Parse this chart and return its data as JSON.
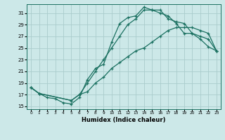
{
  "xlabel": "Humidex (Indice chaleur)",
  "background_color": "#cce8e8",
  "grid_color": "#aacccc",
  "line_color": "#1a7060",
  "xlim": [
    -0.5,
    23.5
  ],
  "ylim": [
    14.5,
    32.5
  ],
  "xticks": [
    0,
    1,
    2,
    3,
    4,
    5,
    6,
    7,
    8,
    9,
    10,
    11,
    12,
    13,
    14,
    15,
    16,
    17,
    18,
    19,
    20,
    21,
    22,
    23
  ],
  "yticks": [
    15,
    17,
    19,
    21,
    23,
    25,
    27,
    29,
    31
  ],
  "series": [
    {
      "x": [
        0,
        1,
        2,
        3,
        4,
        5,
        6,
        7,
        8,
        9,
        10,
        11,
        12,
        13,
        14,
        15,
        16,
        17,
        18,
        19,
        20,
        21,
        22,
        23
      ],
      "y": [
        18.2,
        17.2,
        16.5,
        16.3,
        15.6,
        15.4,
        16.5,
        19.6,
        21.5,
        22.2,
        26.0,
        29.2,
        30.2,
        30.5,
        32.0,
        31.5,
        31.5,
        30.0,
        29.5,
        29.2,
        27.5,
        26.5,
        25.2,
        24.5
      ]
    },
    {
      "x": [
        0,
        1,
        5,
        6,
        7,
        8,
        9,
        10,
        11,
        12,
        13,
        14,
        15,
        16,
        17,
        18,
        19,
        20,
        21,
        22,
        23
      ],
      "y": [
        18.2,
        17.2,
        16.0,
        17.0,
        19.0,
        21.0,
        23.0,
        25.0,
        27.0,
        29.0,
        30.0,
        31.5,
        31.5,
        31.0,
        30.5,
        29.2,
        27.5,
        27.5,
        27.0,
        26.5,
        24.5
      ]
    },
    {
      "x": [
        0,
        1,
        5,
        6,
        7,
        8,
        9,
        10,
        11,
        12,
        13,
        14,
        15,
        16,
        17,
        18,
        19,
        20,
        21,
        22,
        23
      ],
      "y": [
        18.2,
        17.2,
        16.0,
        17.0,
        17.5,
        19.0,
        20.0,
        21.5,
        22.5,
        23.5,
        24.5,
        25.0,
        26.0,
        27.0,
        28.0,
        28.5,
        28.5,
        28.5,
        28.0,
        27.5,
        24.5
      ]
    }
  ]
}
